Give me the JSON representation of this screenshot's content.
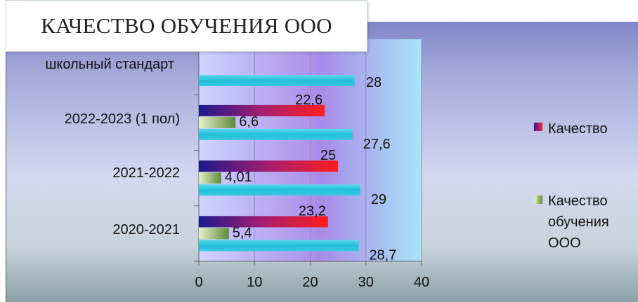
{
  "chart_data": {
    "type": "bar",
    "orientation": "horizontal",
    "title": "КАЧЕСТВО ОБУЧЕНИЯ ООО",
    "categories": [
      "2020-2021",
      "2021-2022",
      "2022-2023 (1 пол)",
      "школьный стандарт"
    ],
    "series": [
      {
        "name": "Качество",
        "values": [
          23.2,
          25,
          22.6,
          null
        ],
        "labels": [
          "23,2",
          "25",
          "22,6",
          ""
        ],
        "color": "#ff1a1a"
      },
      {
        "name": "Качество обучения ООО",
        "values": [
          5.4,
          4.01,
          6.6,
          null
        ],
        "labels": [
          "5,4",
          "4,01",
          "6,6",
          ""
        ],
        "color": "#7aa84c"
      },
      {
        "name": "",
        "values": [
          28.7,
          29,
          27.6,
          28
        ],
        "labels": [
          "28,7",
          "29",
          "27,6",
          "28"
        ],
        "color": "#27c7de"
      }
    ],
    "xlim": [
      0,
      40
    ],
    "xticks": [
      "0",
      "10",
      "20",
      "30",
      "40"
    ],
    "legend": {
      "position": "right",
      "items": [
        {
          "label": "Качество"
        },
        {
          "label_lines": [
            "Качество",
            "обучения",
            "ООО"
          ]
        }
      ]
    },
    "grid": true
  }
}
